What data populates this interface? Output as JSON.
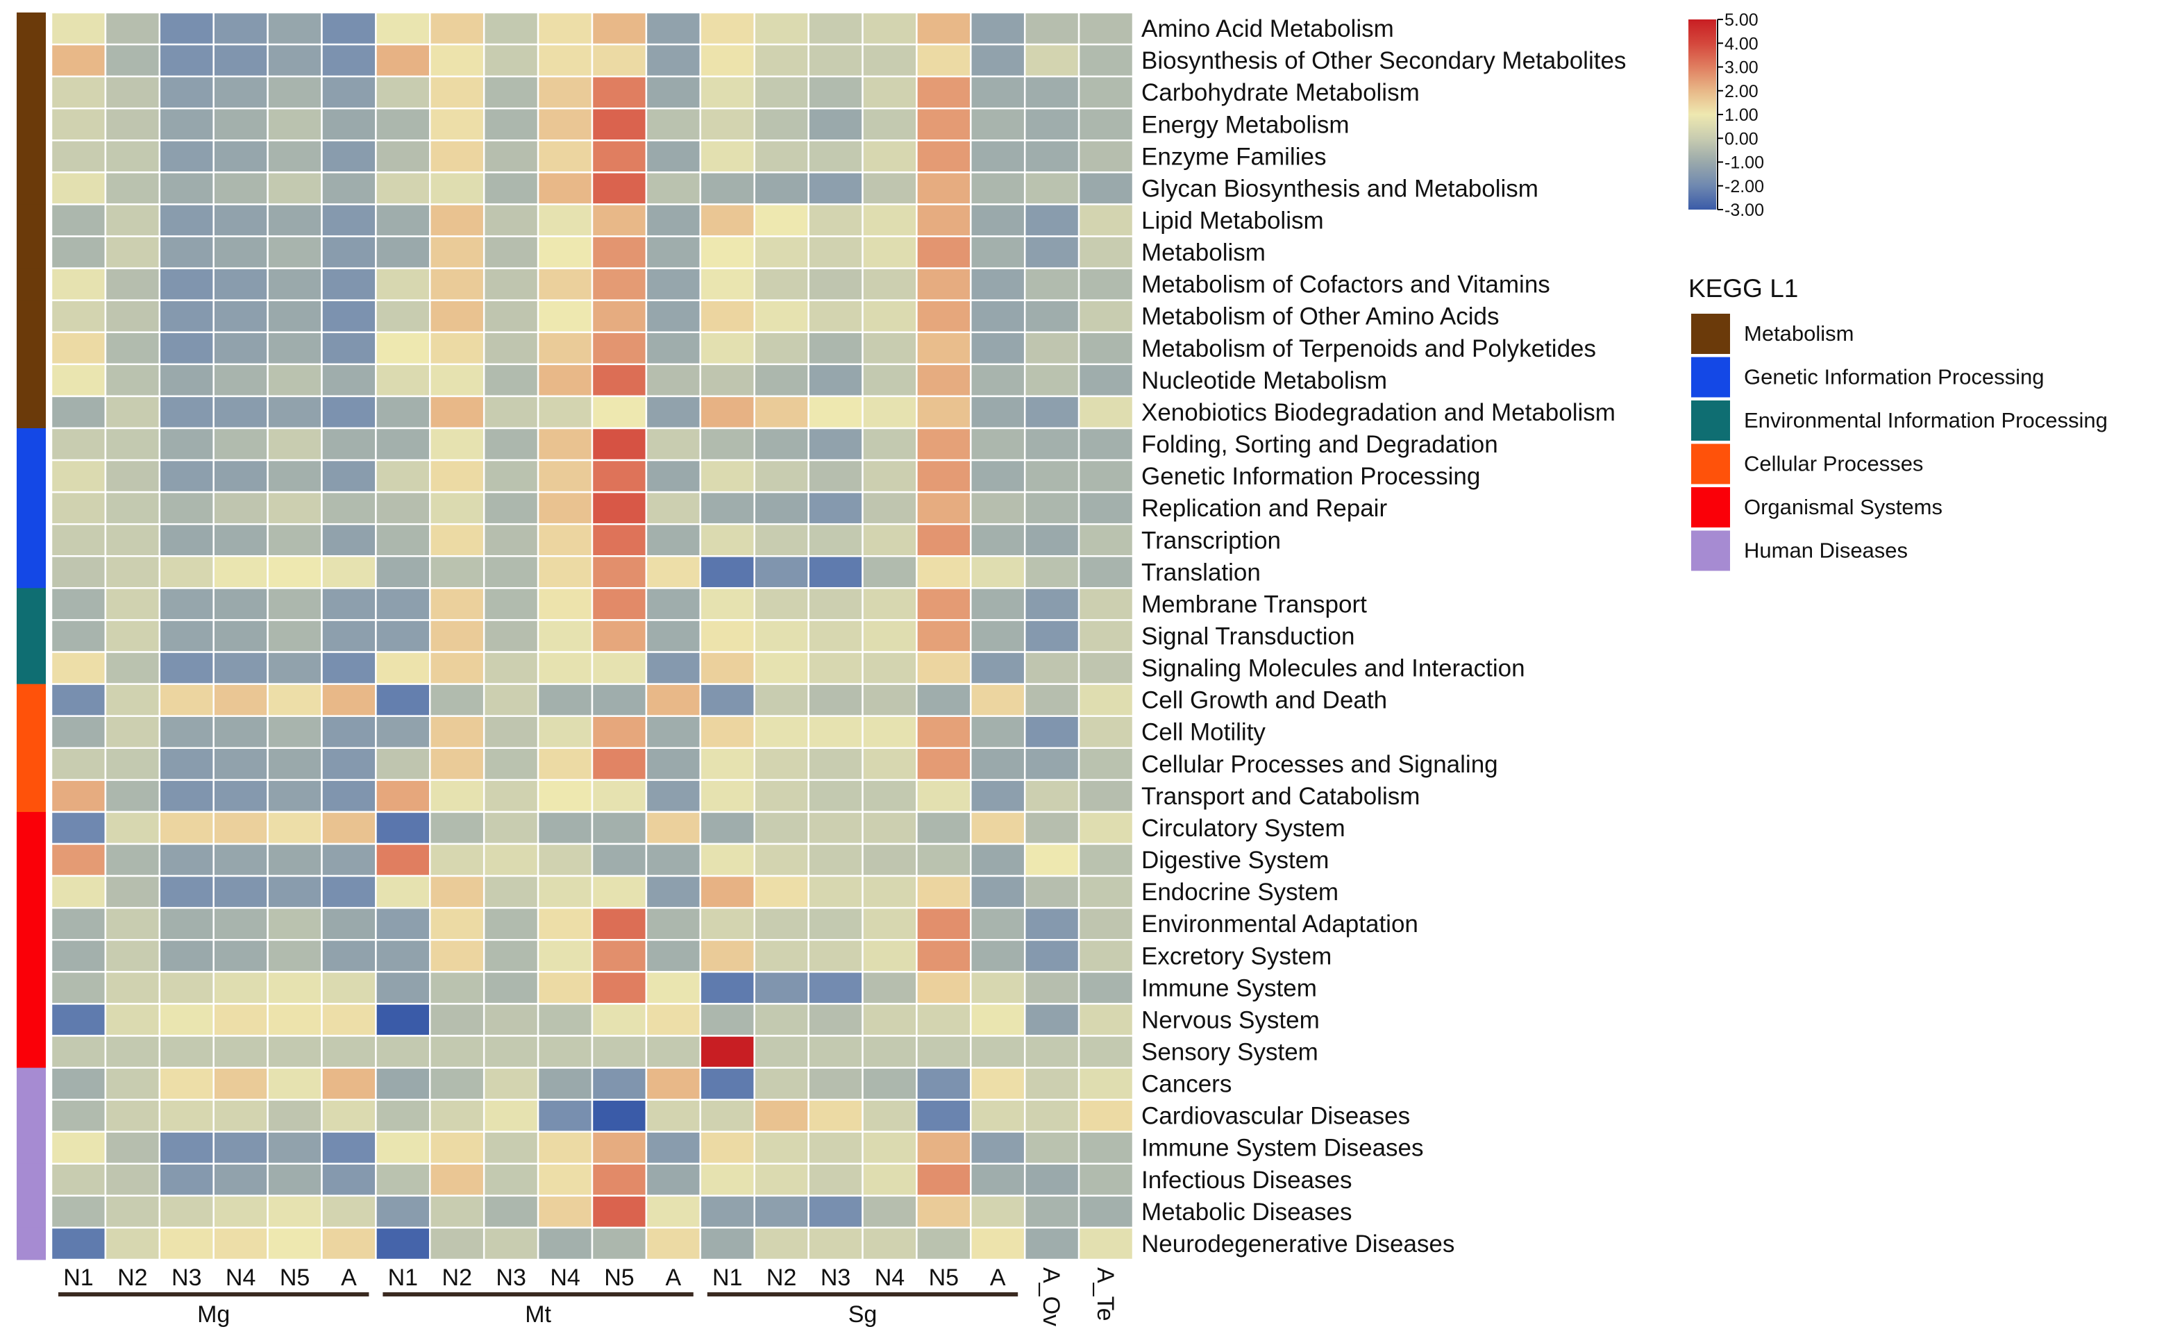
{
  "chart_data": {
    "type": "heatmap",
    "columns": [
      "N1",
      "N2",
      "N3",
      "N4",
      "N5",
      "A",
      "N1",
      "N2",
      "N3",
      "N4",
      "N5",
      "A",
      "N1",
      "N2",
      "N3",
      "N4",
      "N5",
      "A",
      "A_Ov",
      "A_Te"
    ],
    "column_groups": [
      {
        "label": "Mg",
        "span": [
          0,
          5
        ]
      },
      {
        "label": "Mt",
        "span": [
          6,
          11
        ]
      },
      {
        "label": "Sg",
        "span": [
          12,
          17
        ]
      }
    ],
    "rows": [
      "Amino Acid Metabolism",
      "Biosynthesis of Other Secondary Metabolites",
      "Carbohydrate Metabolism",
      "Energy Metabolism",
      "Enzyme Families",
      "Glycan Biosynthesis and Metabolism",
      "Lipid Metabolism",
      "Metabolism",
      "Metabolism of Cofactors and Vitamins",
      "Metabolism of Other Amino Acids",
      "Metabolism of Terpenoids and Polyketides",
      "Nucleotide Metabolism",
      "Xenobiotics Biodegradation and Metabolism",
      "Folding, Sorting and Degradation",
      "Genetic Information Processing",
      "Replication and Repair",
      "Transcription",
      "Translation",
      "Membrane Transport",
      "Signal Transduction",
      "Signaling Molecules and Interaction",
      "Cell Growth and Death",
      "Cell Motility",
      "Cellular Processes and Signaling",
      "Transport and Catabolism",
      "Circulatory System",
      "Digestive System",
      "Endocrine System",
      "Environmental Adaptation",
      "Excretory System",
      "Immune System",
      "Nervous System",
      "Sensory System",
      "Cancers",
      "Cardiovascular Diseases",
      "Immune System Diseases",
      "Infectious Diseases",
      "Metabolic Diseases",
      "Neurodegenerative Diseases"
    ],
    "row_category": [
      0,
      0,
      0,
      0,
      0,
      0,
      0,
      0,
      0,
      0,
      0,
      0,
      0,
      1,
      1,
      1,
      1,
      1,
      2,
      2,
      2,
      3,
      3,
      3,
      3,
      4,
      4,
      4,
      4,
      4,
      4,
      4,
      4,
      5,
      5,
      5,
      5,
      5,
      5
    ],
    "values": [
      [
        0.8,
        -0.4,
        -1.8,
        -1.5,
        -1.1,
        -1.8,
        0.9,
        1.5,
        -0.1,
        1.2,
        2,
        -1.2,
        1.2,
        0.5,
        0,
        0.3,
        2,
        -1.2,
        -0.4,
        -0.4
      ],
      [
        2,
        -0.6,
        -1.7,
        -1.6,
        -1.2,
        -1.7,
        2.1,
        1.1,
        0,
        1.2,
        1.3,
        -1.2,
        1.1,
        0.2,
        0,
        0,
        1.3,
        -1.2,
        0.3,
        -0.5
      ],
      [
        0.3,
        -0.2,
        -1.3,
        -1.1,
        -0.7,
        -1.3,
        0,
        1.3,
        -0.5,
        1.6,
        3,
        -1,
        0.6,
        -0.1,
        -0.5,
        0.2,
        2.5,
        -0.9,
        -0.9,
        -0.5
      ],
      [
        0.2,
        -0.2,
        -1.1,
        -0.8,
        -0.3,
        -1,
        -0.6,
        1.2,
        -0.6,
        1.7,
        3.5,
        -0.3,
        0.3,
        -0.3,
        -1,
        -0.1,
        2.5,
        -0.7,
        -0.9,
        -0.6
      ],
      [
        0,
        -0.1,
        -1.3,
        -1.1,
        -0.7,
        -1.4,
        -0.4,
        1.4,
        -0.4,
        1.4,
        3,
        -1,
        0.7,
        0,
        -0.1,
        0.4,
        2.5,
        -0.9,
        -0.9,
        -0.4
      ],
      [
        0.7,
        -0.3,
        -0.9,
        -0.6,
        -0.1,
        -0.9,
        0.3,
        0.6,
        -0.6,
        2,
        3.5,
        -0.3,
        -0.8,
        -1,
        -1.3,
        -0.2,
        2.2,
        -0.6,
        -0.3,
        -1
      ],
      [
        -0.6,
        0,
        -1.4,
        -1.2,
        -1,
        -1.5,
        -0.9,
        1.8,
        -0.2,
        0.8,
        2,
        -1,
        1.7,
        1,
        0.3,
        0.6,
        2.2,
        -1,
        -1.4,
        0.3
      ],
      [
        -0.6,
        0.1,
        -1.2,
        -1,
        -0.7,
        -1.4,
        -1,
        1.6,
        -0.4,
        1,
        2.6,
        -0.9,
        1,
        0.5,
        0.2,
        0.6,
        2.6,
        -0.8,
        -1.3,
        0
      ],
      [
        0.8,
        -0.4,
        -1.6,
        -1.4,
        -1,
        -1.6,
        0.4,
        1.6,
        -0.2,
        1.5,
        2.5,
        -1.1,
        0.9,
        0.1,
        -0.2,
        0.1,
        2.2,
        -1.1,
        -0.5,
        -0.5
      ],
      [
        0.3,
        -0.2,
        -1.5,
        -1.3,
        -1,
        -1.7,
        0,
        1.8,
        -0.2,
        1,
        2.2,
        -1.1,
        1.4,
        0.8,
        0.3,
        0.5,
        2.3,
        -1.1,
        -0.9,
        0
      ],
      [
        1.3,
        -0.5,
        -1.6,
        -1.2,
        -0.9,
        -1.6,
        1,
        1.3,
        -0.2,
        1.6,
        2.6,
        -0.9,
        0.7,
        0,
        -0.6,
        0,
        1.9,
        -1.1,
        -0.2,
        -0.6
      ],
      [
        0.9,
        -0.3,
        -1,
        -0.7,
        -0.3,
        -0.9,
        0.5,
        0.8,
        -0.5,
        2,
        3.3,
        -0.4,
        -0.2,
        -0.6,
        -1.1,
        -0.1,
        2.2,
        -0.7,
        -0.3,
        -0.9
      ],
      [
        -0.8,
        0,
        -1.5,
        -1.4,
        -1.2,
        -1.7,
        -0.8,
        2,
        0,
        0.3,
        1,
        -1.2,
        2.1,
        1.6,
        1,
        0.8,
        1.8,
        -1,
        -1.3,
        0.6
      ],
      [
        0,
        -0.1,
        -0.9,
        -0.5,
        0,
        -0.8,
        -0.8,
        0.8,
        -0.6,
        1.8,
        3.8,
        0,
        -0.5,
        -0.8,
        -1.2,
        -0.1,
        2.4,
        -0.6,
        -0.8,
        -0.8
      ],
      [
        0.5,
        -0.2,
        -1.3,
        -1.2,
        -0.8,
        -1.4,
        0.2,
        1.3,
        -0.3,
        1.6,
        3.2,
        -1,
        0.5,
        0,
        -0.4,
        0.1,
        2.5,
        -0.9,
        -0.6,
        -0.6
      ],
      [
        0.2,
        -0.1,
        -0.6,
        -0.2,
        0.1,
        -0.5,
        -0.4,
        0.5,
        -0.6,
        1.8,
        3.7,
        0.1,
        -0.9,
        -1,
        -1.5,
        -0.2,
        2.2,
        -0.4,
        -0.6,
        -0.8
      ],
      [
        0,
        0,
        -1,
        -0.9,
        -0.5,
        -1.2,
        -0.6,
        1.3,
        -0.4,
        1.4,
        3.2,
        -0.8,
        0.5,
        0,
        -0.1,
        0.3,
        2.6,
        -0.8,
        -1,
        -0.3
      ],
      [
        -0.2,
        0.1,
        0.4,
        0.9,
        1,
        0.8,
        -0.9,
        -0.3,
        -0.5,
        1.3,
        2.7,
        1.2,
        -2.4,
        -1.6,
        -2.3,
        -0.5,
        1.2,
        0.6,
        -0.3,
        -0.7
      ],
      [
        -0.7,
        0.2,
        -1.1,
        -1,
        -0.6,
        -1.3,
        -1.3,
        1.5,
        -0.5,
        1.1,
        2.8,
        -0.9,
        0.8,
        0.2,
        0.1,
        0.4,
        2.5,
        -0.8,
        -1.4,
        0.1
      ],
      [
        -0.7,
        0.2,
        -1.1,
        -1,
        -0.6,
        -1.3,
        -1.3,
        1.6,
        -0.4,
        0.8,
        2.3,
        -0.9,
        1.1,
        0.7,
        0.4,
        0.6,
        2.4,
        -0.8,
        -1.5,
        0.1
      ],
      [
        1.2,
        -0.3,
        -1.7,
        -1.5,
        -1.2,
        -1.8,
        1.1,
        1.5,
        0.1,
        0.8,
        0.8,
        -1.5,
        1.5,
        0.8,
        0.4,
        0.3,
        1.4,
        -1.4,
        -0.2,
        -0.2
      ],
      [
        -1.8,
        0.2,
        1.4,
        1.7,
        1.2,
        2,
        -2.2,
        -0.5,
        0.1,
        -0.8,
        -0.9,
        2,
        -1.6,
        0,
        -0.4,
        -0.2,
        -0.9,
        1.4,
        -0.4,
        0.6
      ],
      [
        -0.8,
        0.1,
        -1.1,
        -1,
        -0.7,
        -1.4,
        -1.2,
        1.6,
        -0.2,
        0.6,
        2.3,
        -0.9,
        1.4,
        0.8,
        0.8,
        0.8,
        2.4,
        -0.8,
        -1.6,
        0.2
      ],
      [
        0,
        -0.1,
        -1.4,
        -1.2,
        -1,
        -1.5,
        -0.2,
        1.6,
        -0.3,
        1.3,
        2.9,
        -1,
        0.8,
        0.3,
        0,
        0.4,
        2.5,
        -1,
        -1.1,
        -0.3
      ],
      [
        2.2,
        -0.6,
        -1.6,
        -1.5,
        -1.2,
        -1.6,
        2.3,
        0.8,
        0.2,
        1,
        0.8,
        -1.3,
        0.8,
        0.2,
        -0.1,
        -0.1,
        0.7,
        -1.3,
        0.1,
        -0.4
      ],
      [
        -2,
        0.4,
        1.4,
        1.5,
        1.2,
        1.8,
        -2.4,
        -0.5,
        0,
        -0.8,
        -0.8,
        1.5,
        -0.9,
        0,
        0.1,
        0.1,
        -0.6,
        1.4,
        -0.4,
        0.6
      ],
      [
        2.5,
        -0.6,
        -1.2,
        -1.1,
        -1,
        -1.2,
        3,
        0.4,
        0.5,
        0.2,
        -0.9,
        -0.9,
        0.8,
        0.3,
        0,
        -0.2,
        -0.3,
        -1,
        1,
        -0.3
      ],
      [
        0.8,
        -0.4,
        -1.7,
        -1.6,
        -1.4,
        -1.8,
        0.8,
        1.6,
        0,
        0.6,
        0.8,
        -1.3,
        2.1,
        1.2,
        0.4,
        0.4,
        1.4,
        -1.2,
        -0.4,
        -0.1
      ],
      [
        -0.7,
        0,
        -0.8,
        -0.7,
        -0.3,
        -1,
        -1.3,
        1.3,
        -0.5,
        1.2,
        3.3,
        -0.6,
        0.3,
        0,
        -0.1,
        0.4,
        2.7,
        -0.7,
        -1.5,
        -0.2
      ],
      [
        -0.8,
        0,
        -1,
        -0.9,
        -0.5,
        -1.2,
        -1.2,
        1.4,
        -0.5,
        0.8,
        2.7,
        -0.8,
        1.6,
        0.2,
        0.2,
        0.6,
        2.6,
        -0.8,
        -1.5,
        0
      ],
      [
        -0.5,
        0.2,
        0.3,
        0.6,
        0.8,
        0.5,
        -1.2,
        -0.3,
        -0.6,
        1.3,
        3,
        0.9,
        -2.3,
        -1.6,
        -1.9,
        -0.4,
        1.5,
        0.4,
        -0.4,
        -0.7
      ],
      [
        -2.3,
        0.5,
        0.9,
        1.2,
        1.1,
        1.2,
        -3,
        -0.4,
        -0.2,
        -0.3,
        0.8,
        1.2,
        -0.6,
        -0.1,
        -0.4,
        0.2,
        0.3,
        0.9,
        -1.2,
        0.4
      ],
      [
        -0.1,
        -0.1,
        -0.1,
        -0.1,
        -0.1,
        -0.1,
        -0.1,
        -0.1,
        -0.1,
        -0.1,
        -0.1,
        -0.1,
        5,
        -0.1,
        -0.1,
        -0.1,
        -0.1,
        -0.1,
        -0.1,
        -0.1
      ],
      [
        -0.8,
        0,
        1.2,
        1.6,
        0.8,
        2,
        -1,
        -0.5,
        0.3,
        -1,
        -1.6,
        2,
        -2.3,
        0,
        -0.4,
        -0.6,
        -1.7,
        1.2,
        0.1,
        0.6
      ],
      [
        -0.5,
        0.1,
        0.4,
        0.3,
        -0.2,
        0.5,
        -0.3,
        0.3,
        0.8,
        -1.8,
        -3,
        0.3,
        0.2,
        1.8,
        1.3,
        0.2,
        -2.1,
        0.4,
        0.2,
        1.3
      ],
      [
        0.9,
        -0.4,
        -1.8,
        -1.6,
        -1.2,
        -1.9,
        0.9,
        1.3,
        0,
        1.3,
        2.2,
        -1.4,
        1.3,
        0.4,
        0.2,
        0.5,
        2.1,
        -1.3,
        -0.3,
        -0.5
      ],
      [
        0,
        -0.2,
        -1.5,
        -1.2,
        -0.9,
        -1.5,
        -0.3,
        1.7,
        -0.1,
        1.2,
        2.8,
        -1,
        0.8,
        0.5,
        0.1,
        0.6,
        2.7,
        -0.9,
        -1,
        -0.5
      ],
      [
        -0.5,
        0,
        0.2,
        0.5,
        0.8,
        0.3,
        -1.4,
        0,
        -0.6,
        1.5,
        3.5,
        0.8,
        -1.2,
        -1.3,
        -1.8,
        -0.4,
        1.6,
        0.3,
        -0.7,
        -0.8
      ],
      [
        -2.3,
        0.4,
        1.1,
        1.2,
        1,
        1.4,
        -2.8,
        -0.2,
        0,
        -0.8,
        -0.6,
        1.3,
        -0.9,
        0.3,
        0.3,
        0.2,
        -0.3,
        1.1,
        -0.9,
        0.7
      ]
    ],
    "colorscale": {
      "range": [
        -3,
        5
      ],
      "ticks": [
        "5.00",
        "4.00",
        "3.00",
        "2.00",
        "1.00",
        "0.00",
        "-1.00",
        "-2.00",
        "-3.00"
      ],
      "stops": [
        [
          -3,
          "#3a5ba8"
        ],
        [
          -2,
          "#6f88b0"
        ],
        [
          -1,
          "#9aa9ab"
        ],
        [
          0,
          "#c8ccb0"
        ],
        [
          1,
          "#eee8b0"
        ],
        [
          2,
          "#e8b888"
        ],
        [
          3,
          "#e07e60"
        ],
        [
          4,
          "#d4473c"
        ],
        [
          5,
          "#c81e23"
        ]
      ]
    },
    "category_legend": {
      "title": "KEGG L1",
      "items": [
        {
          "label": "Metabolism",
          "color": "#6b3a0a"
        },
        {
          "label": "Genetic Information Processing",
          "color": "#1448e6"
        },
        {
          "label": "Environmental Information Processing",
          "color": "#0f6e72"
        },
        {
          "label": "Cellular Processes",
          "color": "#ff520a"
        },
        {
          "label": "Organismal Systems",
          "color": "#fa0008"
        },
        {
          "label": "Human Diseases",
          "color": "#a68bd2"
        }
      ]
    }
  }
}
